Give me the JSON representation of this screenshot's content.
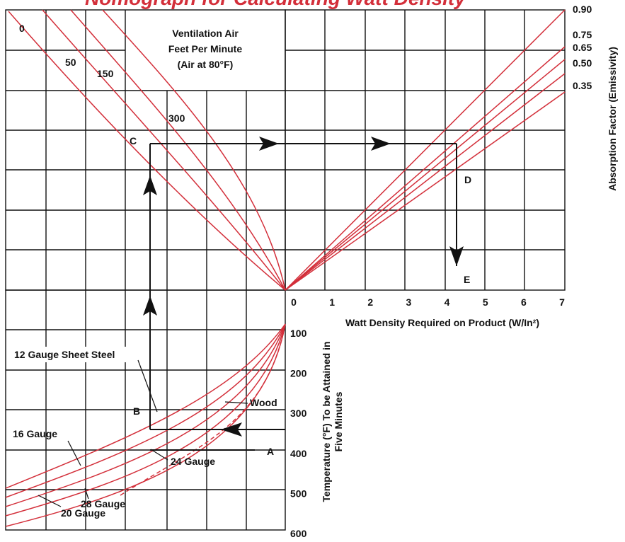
{
  "chart_data": {
    "type": "line",
    "title": "Nomograph for Calculating Watt Density",
    "ventilation_label": [
      "Ventilation Air",
      "Feet Per Minute",
      "(Air at 80°F)"
    ],
    "watt_axis": {
      "label": "Watt Density Required on Product (W/In²)",
      "ticks": [
        "0",
        "1",
        "2",
        "3",
        "4",
        "5",
        "6",
        "7"
      ],
      "range": [
        0,
        7
      ]
    },
    "temperature_axis": {
      "label_line1": "Temperature (°F) To be Attained in",
      "label_line2": "Five Minutes",
      "ticks": [
        "100",
        "200",
        "300",
        "400",
        "500",
        "600"
      ],
      "range": [
        100,
        600
      ]
    },
    "absorption_axis": {
      "label": "Absorption Factor (Emissivity)",
      "values": [
        "0.90",
        "0.75",
        "0.65",
        "0.50",
        "0.35"
      ]
    },
    "air_velocity_curves": [
      "0",
      "50",
      "150",
      "300"
    ],
    "material_curves": [
      "12 Gauge Sheet Steel",
      "16 Gauge",
      "20 Gauge",
      "24 Gauge",
      "28 Gauge",
      "Wood"
    ],
    "example_points": [
      "A",
      "B",
      "C",
      "D",
      "E"
    ],
    "grid": true
  }
}
